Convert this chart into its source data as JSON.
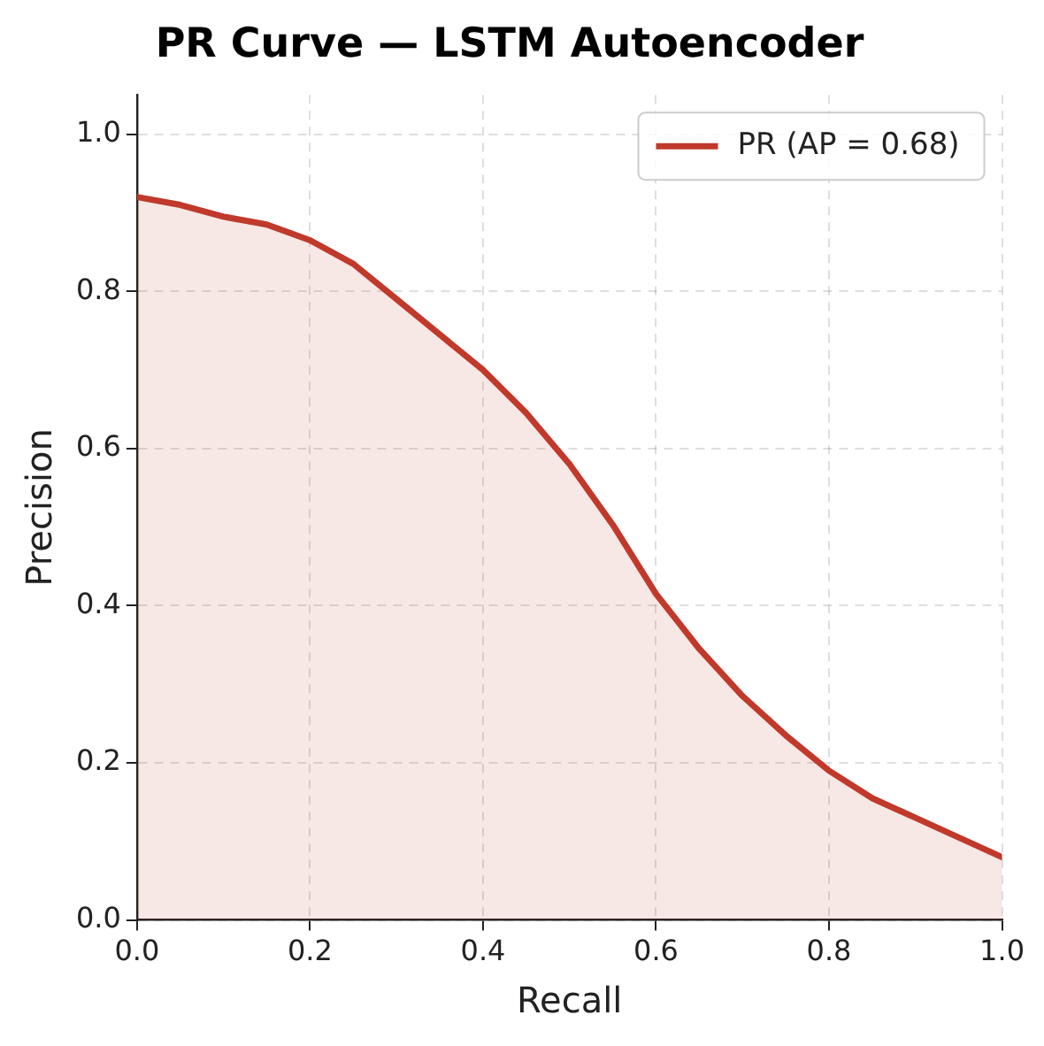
{
  "chart_data": {
    "type": "area",
    "title": "PR Curve — LSTM Autoencoder",
    "xlabel": "Recall",
    "ylabel": "Precision",
    "x": [
      0,
      0.05,
      0.1,
      0.15,
      0.2,
      0.25,
      0.3,
      0.35,
      0.4,
      0.45,
      0.5,
      0.55,
      0.6,
      0.65,
      0.7,
      0.75,
      0.8,
      0.85,
      0.9,
      0.95,
      1
    ],
    "series": [
      {
        "name": "PR (AP = 0.68)",
        "color": "#c0392b",
        "values": [
          0.92,
          0.91,
          0.895,
          0.885,
          0.865,
          0.835,
          0.79,
          0.745,
          0.7,
          0.645,
          0.58,
          0.503,
          0.415,
          0.345,
          0.285,
          0.235,
          0.19,
          0.155,
          0.13,
          0.105,
          0.08
        ]
      }
    ],
    "xlim": [
      0,
      1
    ],
    "ylim": [
      0,
      1.05
    ],
    "xticks": [
      {
        "value": 0,
        "label": "0.0"
      },
      {
        "value": 0.2,
        "label": "0.2"
      },
      {
        "value": 0.4,
        "label": "0.4"
      },
      {
        "value": 0.6,
        "label": "0.6"
      },
      {
        "value": 0.8,
        "label": "0.8"
      },
      {
        "value": 1,
        "label": "1.0"
      }
    ],
    "yticks": [
      {
        "value": 0,
        "label": "0.0"
      },
      {
        "value": 0.2,
        "label": "0.2"
      },
      {
        "value": 0.4,
        "label": "0.4"
      },
      {
        "value": 0.6,
        "label": "0.6"
      },
      {
        "value": 0.8,
        "label": "0.8"
      },
      {
        "value": 1,
        "label": "1.0"
      }
    ],
    "grid": true,
    "legend": "top right",
    "line_style": "solid",
    "marker": "none"
  }
}
